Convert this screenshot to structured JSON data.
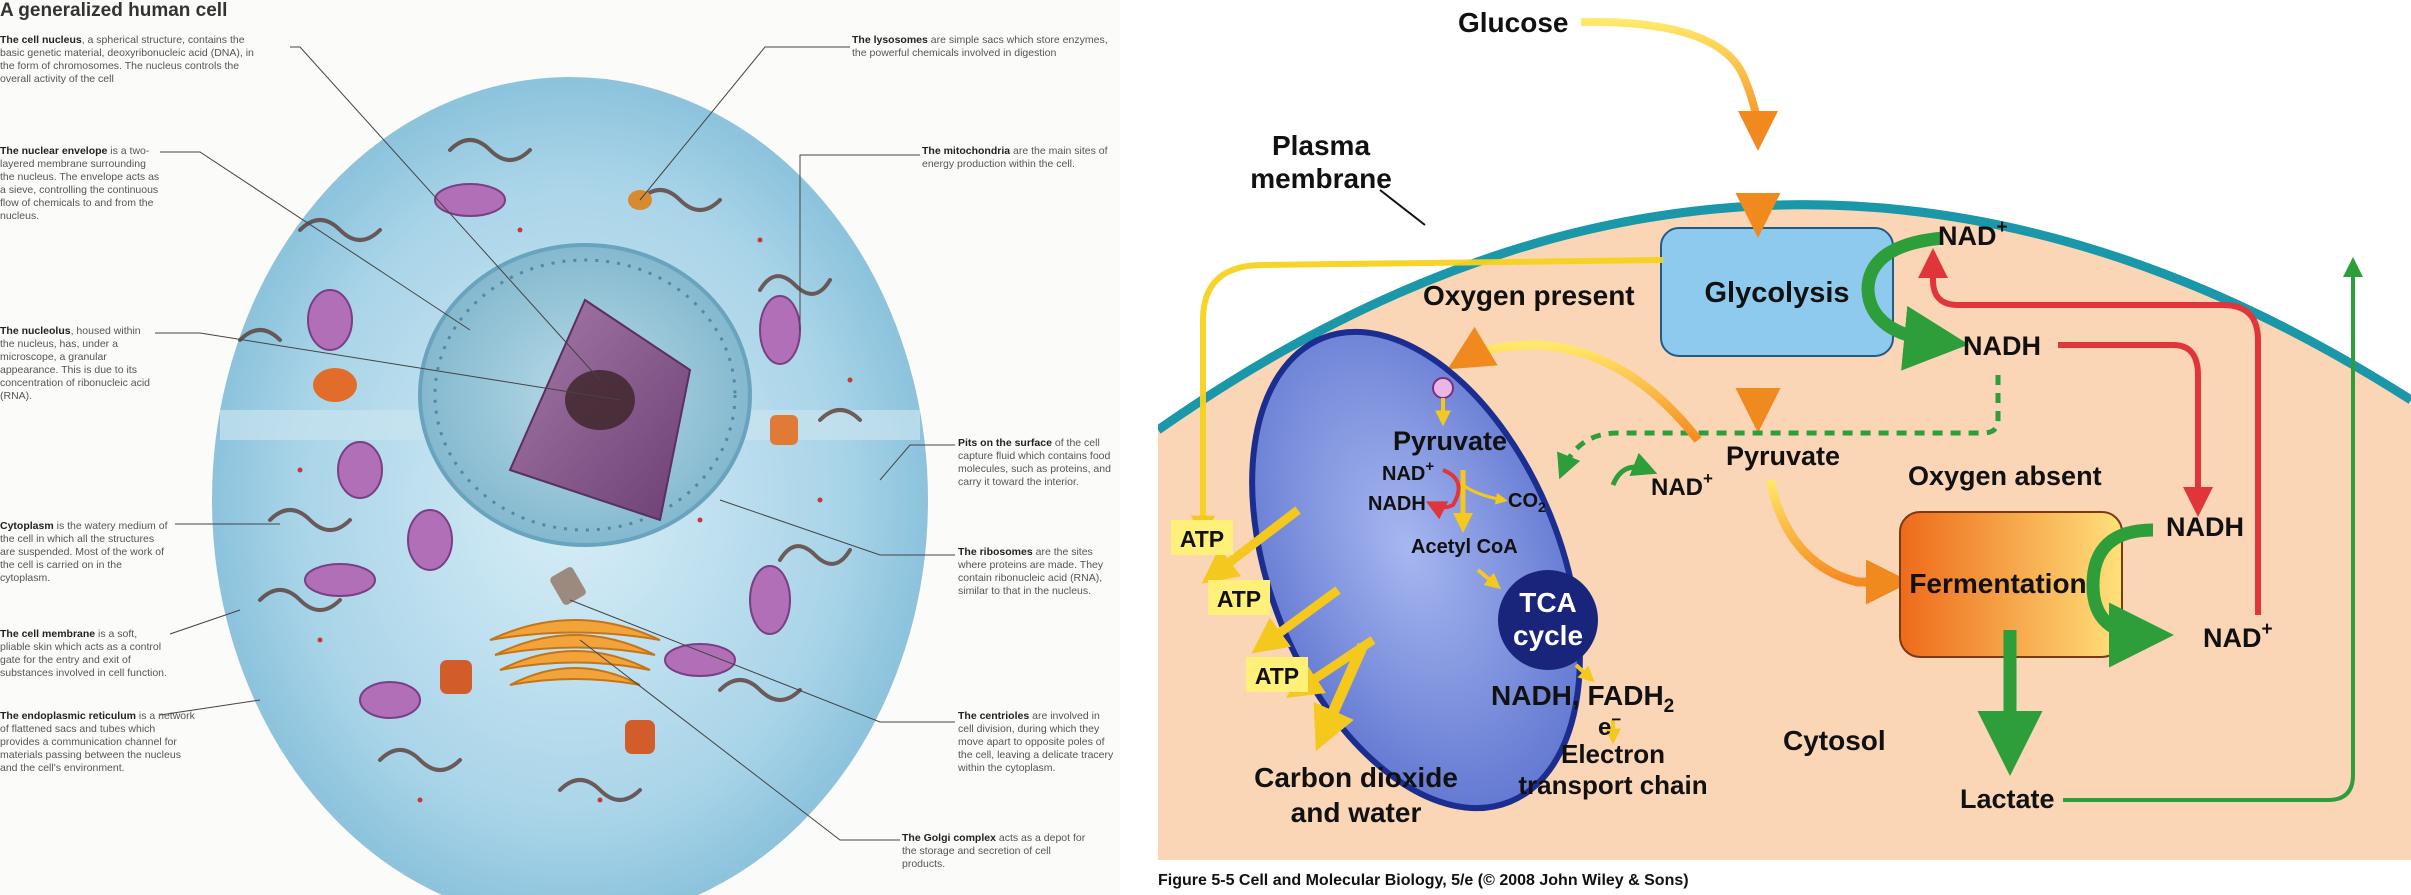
{
  "left_panel": {
    "title": "A generalized human cell",
    "annotations": [
      {
        "id": "nucleus",
        "term": "The cell nucleus",
        "text": ", a spherical structure, contains the basic genetic material, deoxyribonucleic acid (DNA), in the form of chromosomes. The nucleus controls the overall activity of the cell"
      },
      {
        "id": "nuclear-envelope",
        "term": "The nuclear envelope",
        "text": " is a two-layered membrane surrounding the nucleus. The envelope acts as a sieve, controlling the continuous flow of chemicals to and from the nucleus."
      },
      {
        "id": "nucleolus",
        "term": "The nucleolus",
        "text": ", housed within the nucleus, has, under a microscope, a granular appearance. This is due to its concentration of ribonucleic acid (RNA)."
      },
      {
        "id": "cytoplasm",
        "term": "Cytoplasm",
        "text": " is the watery medium of the cell in which all the structures are suspended. Most of the work of the cell is carried on in the cytoplasm."
      },
      {
        "id": "cell-membrane",
        "term": "The cell membrane",
        "text": " is a soft, pliable skin which acts as a control gate for the entry and exit of substances involved in cell function."
      },
      {
        "id": "er",
        "term": "The endoplasmic reticulum",
        "text": " is a network of flattened sacs and tubes which provides a communication channel for materials passing between the nucleus and the cell's environment."
      },
      {
        "id": "lysosomes",
        "term": "The lysosomes",
        "text": " are simple sacs which store enzymes, the powerful chemicals involved in digestion"
      },
      {
        "id": "mitochondria",
        "term": "The mitochondria",
        "text": " are the main sites of energy production within the cell."
      },
      {
        "id": "pits",
        "term": "Pits on the surface",
        "text": " of the cell capture fluid which contains food molecules, such as proteins, and carry it toward the interior."
      },
      {
        "id": "ribosomes",
        "term": "The ribosomes",
        "text": " are the sites where proteins are made. They contain ribonucleic acid (RNA), similar to that in the nucleus."
      },
      {
        "id": "centrioles",
        "term": "The centrioles",
        "text": " are involved in cell division, during which they move apart to opposite poles of the cell, leaving a delicate tracery within the cytoplasm."
      },
      {
        "id": "golgi",
        "term": "The Golgi complex",
        "text": " acts as a depot for the storage and secretion of cell products."
      }
    ]
  },
  "right_panel": {
    "labels": {
      "glucose": "Glucose",
      "plasma1": "Plasma",
      "plasma2": "membrane",
      "oxygen_present": "Oxygen present",
      "glycolysis": "Glycolysis",
      "nad_top": "NAD",
      "nadh_top": "NADH",
      "pyruvate_cyto": "Pyruvate",
      "nad_mid": "NAD",
      "oxygen_absent": "Oxygen absent",
      "pyruvate_mito": "Pyruvate",
      "nad_mito": "NAD",
      "nadh_mito": "NADH",
      "co2": "CO",
      "acetyl": "Acetyl CoA",
      "tca1": "TCA",
      "tca2": "cycle",
      "nadh_fadh": "NADH, FADH",
      "electron": "e",
      "etc1": "Electron",
      "etc2": "transport chain",
      "atp1": "ATP",
      "atp2": "ATP",
      "atp3": "ATP",
      "cdw1": "Carbon dioxide",
      "cdw2": "and water",
      "fermentation": "Fermentation",
      "nadh_ferm": "NADH",
      "nad_ferm": "NAD",
      "lactate": "Lactate",
      "cytosol": "Cytosol",
      "plus": "+",
      "minus": "−",
      "sub2": "2"
    },
    "caption": "Figure 5-5  Cell and Molecular Biology, 5/e (© 2008 John Wiley & Sons)",
    "colors": {
      "cytosol": "#fbd6b6",
      "membrane": "#1a97a8",
      "mitochondrion": "#6f86d8",
      "glycolysis_box": "#8ec9ee",
      "tca": "#18257a",
      "atp_box": "#fff07a",
      "red_arrow": "#e0353b",
      "green_arrow": "#2e9e3a"
    }
  }
}
